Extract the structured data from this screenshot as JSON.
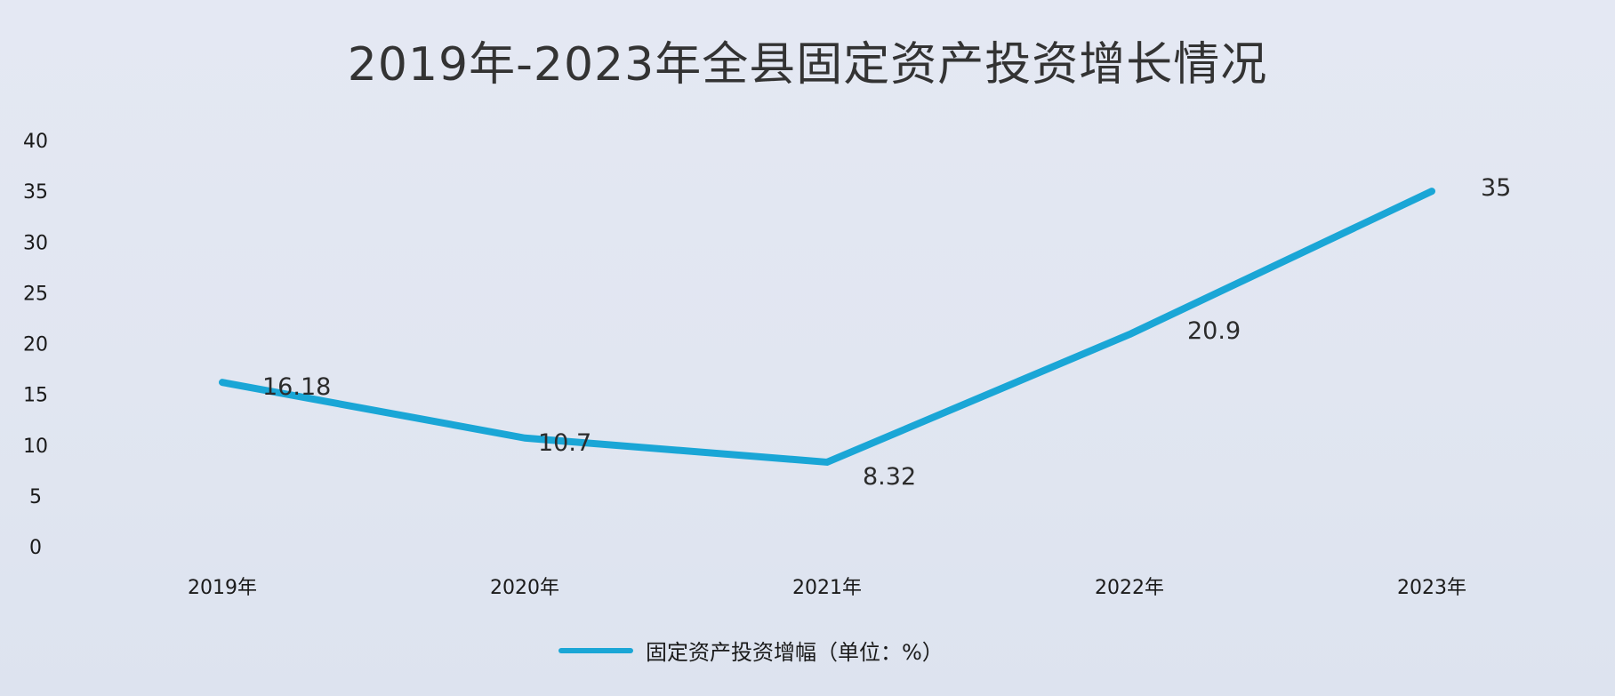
{
  "chart_data": {
    "type": "line",
    "title": "2019年-2023年全县固定资产投资增长情况",
    "categories": [
      "2019年",
      "2020年",
      "2021年",
      "2022年",
      "2023年"
    ],
    "series": [
      {
        "name": "固定资产投资增幅（单位：%）",
        "values": [
          16.18,
          10.7,
          8.32,
          20.9,
          35
        ],
        "labels": [
          "16.18",
          "10.7",
          "8.32",
          "20.9",
          "35"
        ],
        "color": "#1aa6d6"
      }
    ],
    "y_ticks": [
      "0",
      "5",
      "10",
      "15",
      "20",
      "25",
      "30",
      "35",
      "40"
    ],
    "ylim": [
      0,
      40
    ],
    "grid": false,
    "legend_position": "bottom"
  }
}
